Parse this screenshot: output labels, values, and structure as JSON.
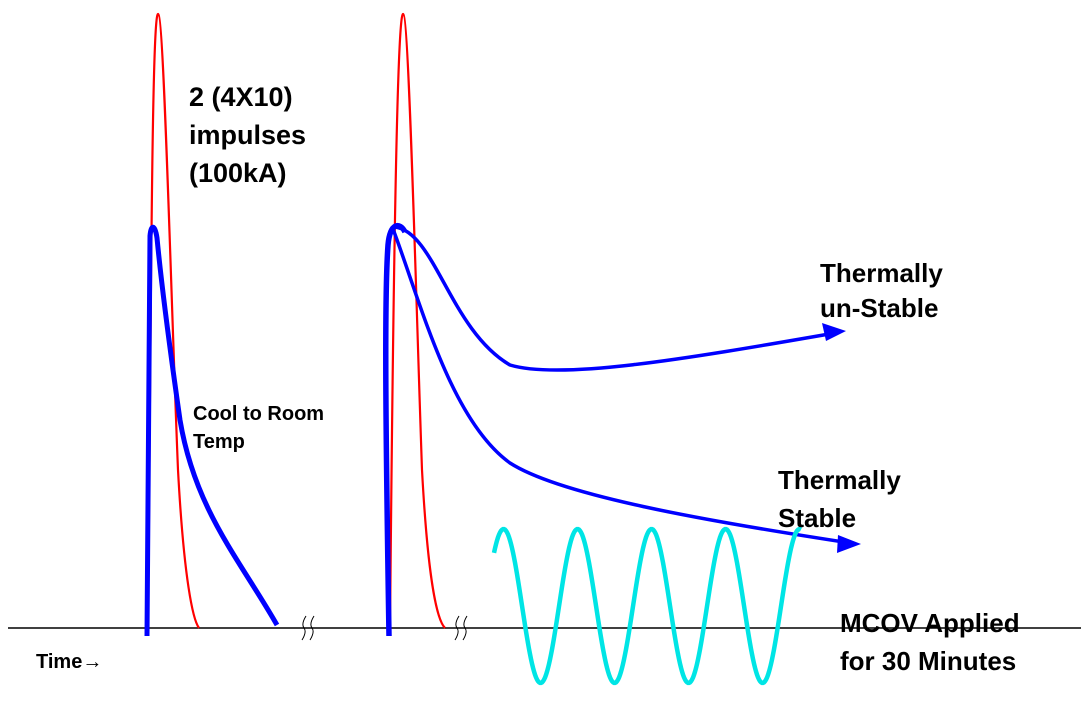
{
  "labels": {
    "impulse_line1": "2  (4X10)",
    "impulse_line2": "impulses",
    "impulse_line3": "(100kA)",
    "cool_line1": "Cool to Room",
    "cool_line2": "Temp",
    "unstable_line1": "Thermally",
    "unstable_line2": "un-Stable",
    "stable_line1": "Thermally",
    "stable_line2": "Stable",
    "mcov_line1": "MCOV Applied",
    "mcov_line2": "for 30 Minutes",
    "time_axis": "Time→"
  },
  "colors": {
    "impulse": "#ff0000",
    "temperature": "#0000ff",
    "mcov_wave": "#00e5e5",
    "axis": "#000000"
  }
}
